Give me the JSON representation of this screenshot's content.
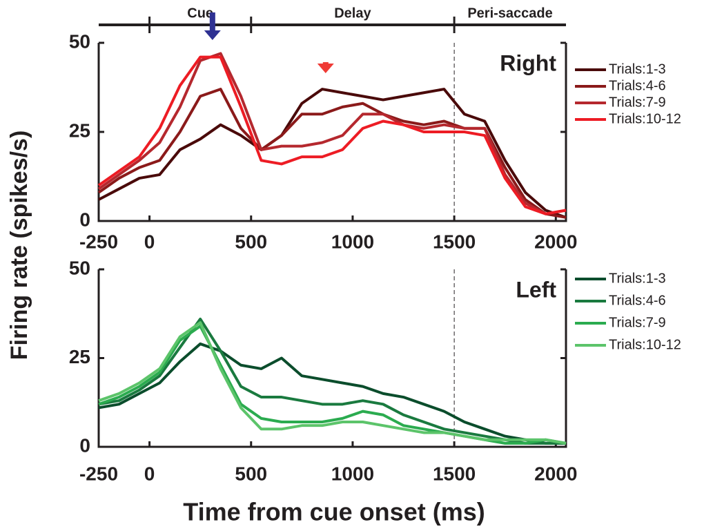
{
  "chart_data": [
    {
      "type": "line",
      "title": "Right",
      "x": [
        -250,
        -150,
        -50,
        50,
        150,
        250,
        350,
        450,
        550,
        650,
        750,
        850,
        950,
        1050,
        1150,
        1250,
        1350,
        1450,
        1550,
        1650,
        1750,
        1850,
        1950,
        2050
      ],
      "xlim": [
        -250,
        2050
      ],
      "xticks": [
        -250,
        0,
        500,
        1000,
        1500,
        2000
      ],
      "ylim": [
        0,
        50
      ],
      "yticks": [
        0,
        25,
        50
      ],
      "vline": 1500,
      "epochs": [
        {
          "label": "Cue",
          "start": 0,
          "end": 500
        },
        {
          "label": "Delay",
          "start": 500,
          "end": 1500
        },
        {
          "label": "Peri-saccade",
          "start": 1500,
          "end": 2050
        }
      ],
      "arrows": [
        {
          "x": 310,
          "color": "#2e3192"
        },
        {
          "x": 867,
          "color": "#ef3b36"
        }
      ],
      "series": [
        {
          "name": "Trials:1-3",
          "color": "#4a0a0a",
          "values": [
            6,
            9,
            12,
            13,
            20,
            23,
            27,
            24,
            20,
            24,
            33,
            37,
            36,
            35,
            34,
            35,
            36,
            37,
            30,
            28,
            17,
            8,
            3,
            1
          ]
        },
        {
          "name": "Trials:4-6",
          "color": "#8b1a1a",
          "values": [
            8,
            12,
            15,
            17,
            25,
            35,
            37,
            26,
            20,
            24,
            30,
            30,
            32,
            33,
            30,
            28,
            27,
            28,
            26,
            26,
            15,
            6,
            2,
            1
          ]
        },
        {
          "name": "Trials:7-9",
          "color": "#b5282e",
          "values": [
            9,
            13,
            17,
            22,
            32,
            45,
            47,
            35,
            20,
            21,
            21,
            22,
            24,
            30,
            30,
            27,
            26,
            27,
            26,
            26,
            13,
            5,
            2,
            3
          ]
        },
        {
          "name": "Trials:10-12",
          "color": "#ed1c24",
          "values": [
            10,
            14,
            18,
            26,
            38,
            46,
            46,
            32,
            17,
            16,
            18,
            18,
            20,
            26,
            28,
            27,
            25,
            25,
            25,
            24,
            12,
            4,
            2,
            3
          ]
        }
      ]
    },
    {
      "type": "line",
      "title": "Left",
      "x": [
        -250,
        -150,
        -50,
        50,
        150,
        250,
        350,
        450,
        550,
        650,
        750,
        850,
        950,
        1050,
        1150,
        1250,
        1350,
        1450,
        1550,
        1650,
        1750,
        1850,
        1950,
        2050
      ],
      "xlim": [
        -250,
        2050
      ],
      "xticks": [
        -250,
        0,
        500,
        1000,
        1500,
        2000
      ],
      "ylim": [
        0,
        50
      ],
      "yticks": [
        0,
        25,
        50
      ],
      "vline": 1500,
      "xlabel": "Time from cue onset (ms)",
      "ylabel": "Firing rate (spikes/s)",
      "series": [
        {
          "name": "Trials:1-3",
          "color": "#0b4d2c",
          "values": [
            11,
            12,
            15,
            18,
            24,
            29,
            27,
            23,
            22,
            25,
            20,
            19,
            18,
            17,
            15,
            14,
            12,
            10,
            7,
            5,
            3,
            2,
            1,
            1
          ]
        },
        {
          "name": "Trials:4-6",
          "color": "#1a7a3f",
          "values": [
            12,
            13,
            16,
            20,
            28,
            36,
            27,
            17,
            14,
            14,
            13,
            12,
            12,
            13,
            12,
            9,
            7,
            5,
            4,
            3,
            2,
            1,
            1,
            1
          ]
        },
        {
          "name": "Trials:7-9",
          "color": "#2bab4f",
          "values": [
            12,
            14,
            17,
            21,
            30,
            34,
            23,
            12,
            8,
            7,
            7,
            7,
            8,
            10,
            9,
            6,
            5,
            4,
            3,
            2,
            1,
            1,
            2,
            1
          ]
        },
        {
          "name": "Trials:10-12",
          "color": "#5cc46a",
          "values": [
            13,
            15,
            18,
            22,
            31,
            35,
            22,
            11,
            5,
            5,
            6,
            6,
            7,
            7,
            6,
            5,
            4,
            4,
            3,
            2,
            2,
            2,
            2,
            1
          ]
        }
      ]
    }
  ]
}
